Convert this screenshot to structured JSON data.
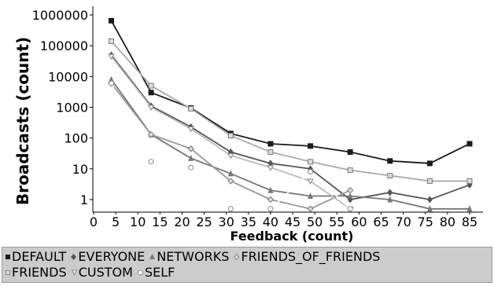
{
  "chart_data": {
    "type": "line",
    "title": "",
    "xlabel": "Feedback (count)",
    "ylabel": "Broadcasts (count)",
    "xlim": [
      0,
      88
    ],
    "ylim": [
      0.5,
      1000000
    ],
    "yscale": "log",
    "x_ticks": [
      0,
      5,
      10,
      15,
      20,
      25,
      30,
      35,
      40,
      45,
      50,
      55,
      60,
      65,
      70,
      75,
      80,
      85
    ],
    "y_ticks": [
      {
        "value": 1,
        "label": "1"
      },
      {
        "value": 10,
        "label": "10"
      },
      {
        "value": 100,
        "label": "100"
      },
      {
        "value": 1000,
        "label": "1000"
      },
      {
        "value": 10000,
        "label": "10000"
      },
      {
        "value": 100000,
        "label": "100000"
      },
      {
        "value": 1000000,
        "label": "1000000"
      }
    ],
    "grid": false,
    "legend_position": "bottom",
    "series": [
      {
        "name": "DEFAULT",
        "marker": "square",
        "color": "#1a1a1a",
        "x": [
          4,
          13,
          22,
          31,
          40,
          49,
          58,
          67,
          76,
          85
        ],
        "y": [
          650000,
          3000,
          950,
          140,
          65,
          55,
          35,
          18,
          15,
          65
        ]
      },
      {
        "name": "EVERYONE",
        "marker": "diamond",
        "color": "#555555",
        "x": [
          4,
          13,
          22,
          31,
          40,
          49,
          58,
          67,
          76,
          85
        ],
        "y": [
          50000,
          1100,
          230,
          35,
          15,
          10,
          1,
          1.7,
          1,
          3
        ]
      },
      {
        "name": "NETWORKS",
        "marker": "triangle",
        "color": "#777777",
        "x": [
          4,
          13,
          22,
          31,
          40,
          49,
          58,
          67,
          76,
          85
        ],
        "y": [
          8000,
          130,
          22,
          7,
          2,
          1.3,
          1.3,
          1,
          0.5,
          0.5
        ]
      },
      {
        "name": "FRIENDS_OF_FRIENDS",
        "marker": "diamond-open",
        "color": "#999999",
        "x": [
          4,
          13,
          22,
          31,
          40,
          49,
          58
        ],
        "y": [
          6000,
          130,
          45,
          4,
          1,
          0.5,
          2
        ]
      },
      {
        "name": "FRIENDS",
        "marker": "square-open",
        "color": "#aaaaaa",
        "x": [
          4,
          13,
          22,
          31,
          40,
          49,
          58,
          67,
          76,
          85
        ],
        "y": [
          140000,
          5000,
          900,
          120,
          35,
          17,
          9,
          6,
          4,
          4
        ]
      },
      {
        "name": "CUSTOM",
        "marker": "triangle-down-open",
        "color": "#bbbbbb",
        "x": [
          4,
          13,
          22,
          31,
          40,
          49,
          58
        ],
        "y": [
          45000,
          1000,
          200,
          27,
          11,
          4,
          0.5
        ]
      },
      {
        "name": "SELF",
        "marker": "circle-open",
        "color": "#ffffff",
        "x": [
          4,
          13,
          22,
          31,
          40,
          49,
          58
        ],
        "y": [
          6000,
          17,
          11,
          0.5,
          0.5,
          8,
          0.5
        ]
      }
    ]
  }
}
